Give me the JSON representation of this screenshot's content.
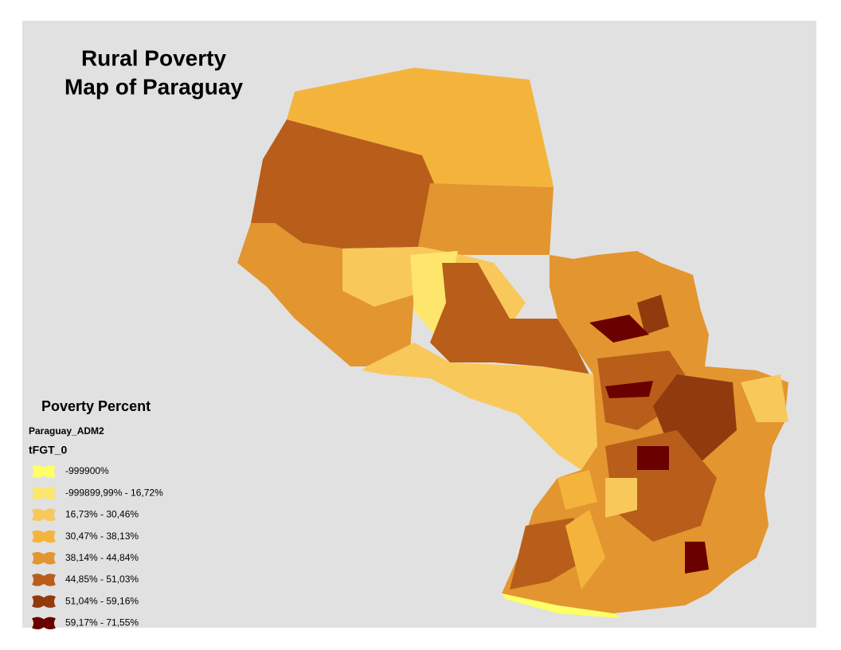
{
  "map": {
    "title": [
      "Rural Poverty",
      "Map of Paraguay"
    ],
    "legend": {
      "title": "Poverty Percent",
      "layer": "Paraguay_ADM2",
      "field": "tFGT_0",
      "classes": [
        {
          "label": "-999900%",
          "color": "#ffff66"
        },
        {
          "label": "-999899,99% - 16,72%",
          "color": "#fde66b"
        },
        {
          "label": "16,73% - 30,46%",
          "color": "#f9c85a"
        },
        {
          "label": "30,47% - 38,13%",
          "color": "#f4b43c"
        },
        {
          "label": "38,14% - 44,84%",
          "color": "#e3952f"
        },
        {
          "label": "44,85% - 51,03%",
          "color": "#b85e1a"
        },
        {
          "label": "51,04% - 59,16%",
          "color": "#913a0e"
        },
        {
          "label": "59,17% - 71,55%",
          "color": "#6b0000"
        }
      ]
    }
  }
}
